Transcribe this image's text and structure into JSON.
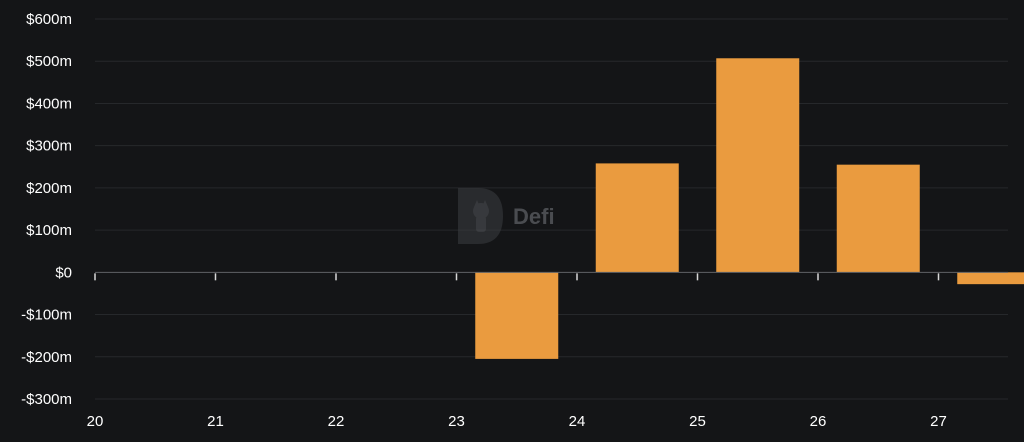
{
  "chart_data": {
    "type": "bar",
    "categories": [
      "20",
      "21",
      "22",
      "23",
      "24",
      "25",
      "26",
      "27"
    ],
    "values": [
      0,
      0,
      0,
      -205,
      258,
      507,
      255,
      -28
    ],
    "y_ticks": [
      -300,
      -200,
      -100,
      0,
      100,
      200,
      300,
      400,
      500,
      600
    ],
    "y_tick_labels": [
      "-$300m",
      "-$200m",
      "-$100m",
      "$0",
      "$100m",
      "$200m",
      "$300m",
      "$400m",
      "$500m",
      "$600m"
    ],
    "ylim": [
      -300,
      600
    ],
    "title": "",
    "xlabel": "",
    "ylabel": "",
    "grid": true,
    "legend": "none",
    "colors": {
      "bar": "#EA9B3F",
      "background": "#141517",
      "text": "#ffffff"
    }
  },
  "watermark": {
    "label": "Defi",
    "icon": "defillama-logo-icon"
  }
}
